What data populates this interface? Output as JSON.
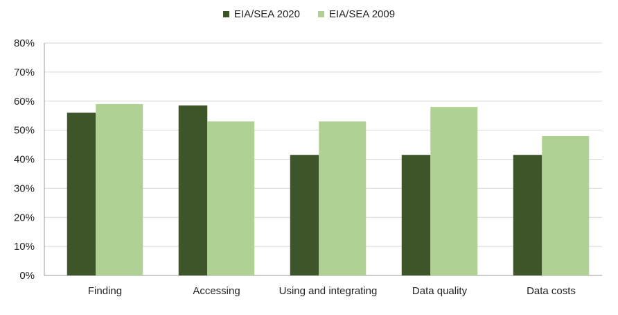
{
  "chart_data": {
    "type": "bar",
    "categories": [
      "Finding",
      "Accessing",
      "Using and integrating",
      "Data quality",
      "Data costs"
    ],
    "series": [
      {
        "name": "EIA/SEA 2020",
        "color": "#3e5429",
        "values": [
          56,
          58.5,
          41.5,
          41.5,
          41.5
        ]
      },
      {
        "name": "EIA/SEA 2009",
        "color": "#b0d194",
        "values": [
          59,
          53,
          53,
          58,
          48
        ]
      }
    ],
    "ylim": [
      0,
      80
    ],
    "yticks": [
      "0%",
      "10%",
      "20%",
      "30%",
      "40%",
      "50%",
      "60%",
      "70%",
      "80%"
    ],
    "grid": true,
    "legend_position": "top-center",
    "title": "",
    "xlabel": "",
    "ylabel": ""
  }
}
